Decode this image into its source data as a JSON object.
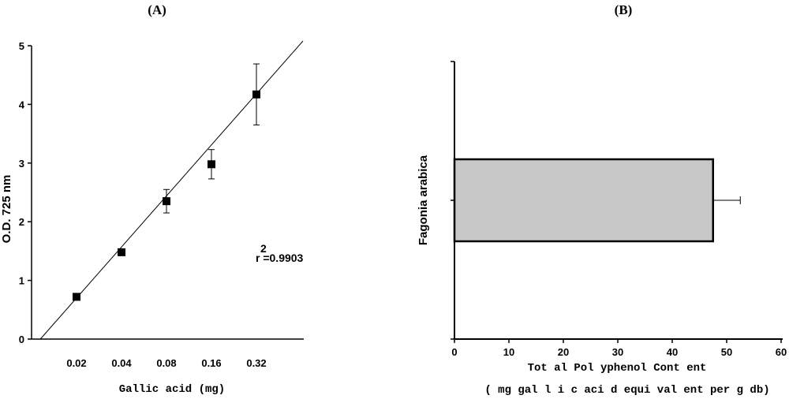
{
  "panel_a": {
    "label": "(A)"
  },
  "panel_b": {
    "label": "(B)"
  },
  "chart_data": [
    {
      "type": "scatter",
      "panel": "(A)",
      "xlabel": "Gallic acid (mg)",
      "ylabel": "O.D. 725 nm",
      "x_scale": "categorical, evenly spaced",
      "categories": [
        "0.02",
        "0.04",
        "0.08",
        "0.16",
        "0.32"
      ],
      "values": [
        0.72,
        1.48,
        2.35,
        2.98,
        4.17
      ],
      "error": [
        0.05,
        0.05,
        0.2,
        0.25,
        0.52
      ],
      "ylim": [
        0,
        5
      ],
      "yticks": [
        "0",
        "1",
        "2",
        "3",
        "4",
        "5"
      ],
      "fit_line": {
        "slope_per_category": 0.87,
        "intercept_at_first_category": 0.7
      },
      "annotation": {
        "sup": "2",
        "text": "r =0.9903"
      },
      "grid": false,
      "marker_color": "#000000"
    },
    {
      "type": "bar",
      "orientation": "horizontal",
      "panel": "(B)",
      "categories": [
        "Fagonia arabica"
      ],
      "values": [
        47.5
      ],
      "error": [
        5
      ],
      "xlim": [
        0,
        60
      ],
      "xticks": [
        "0",
        "10",
        "20",
        "30",
        "40",
        "50",
        "60"
      ],
      "xlabel_line1": "Tot al  Pol yphenol  Cont ent",
      "xlabel_line2": "( mg gal l i c aci d equi val ent per g db)",
      "bar_color": "#c8c8c8",
      "grid": false
    }
  ]
}
